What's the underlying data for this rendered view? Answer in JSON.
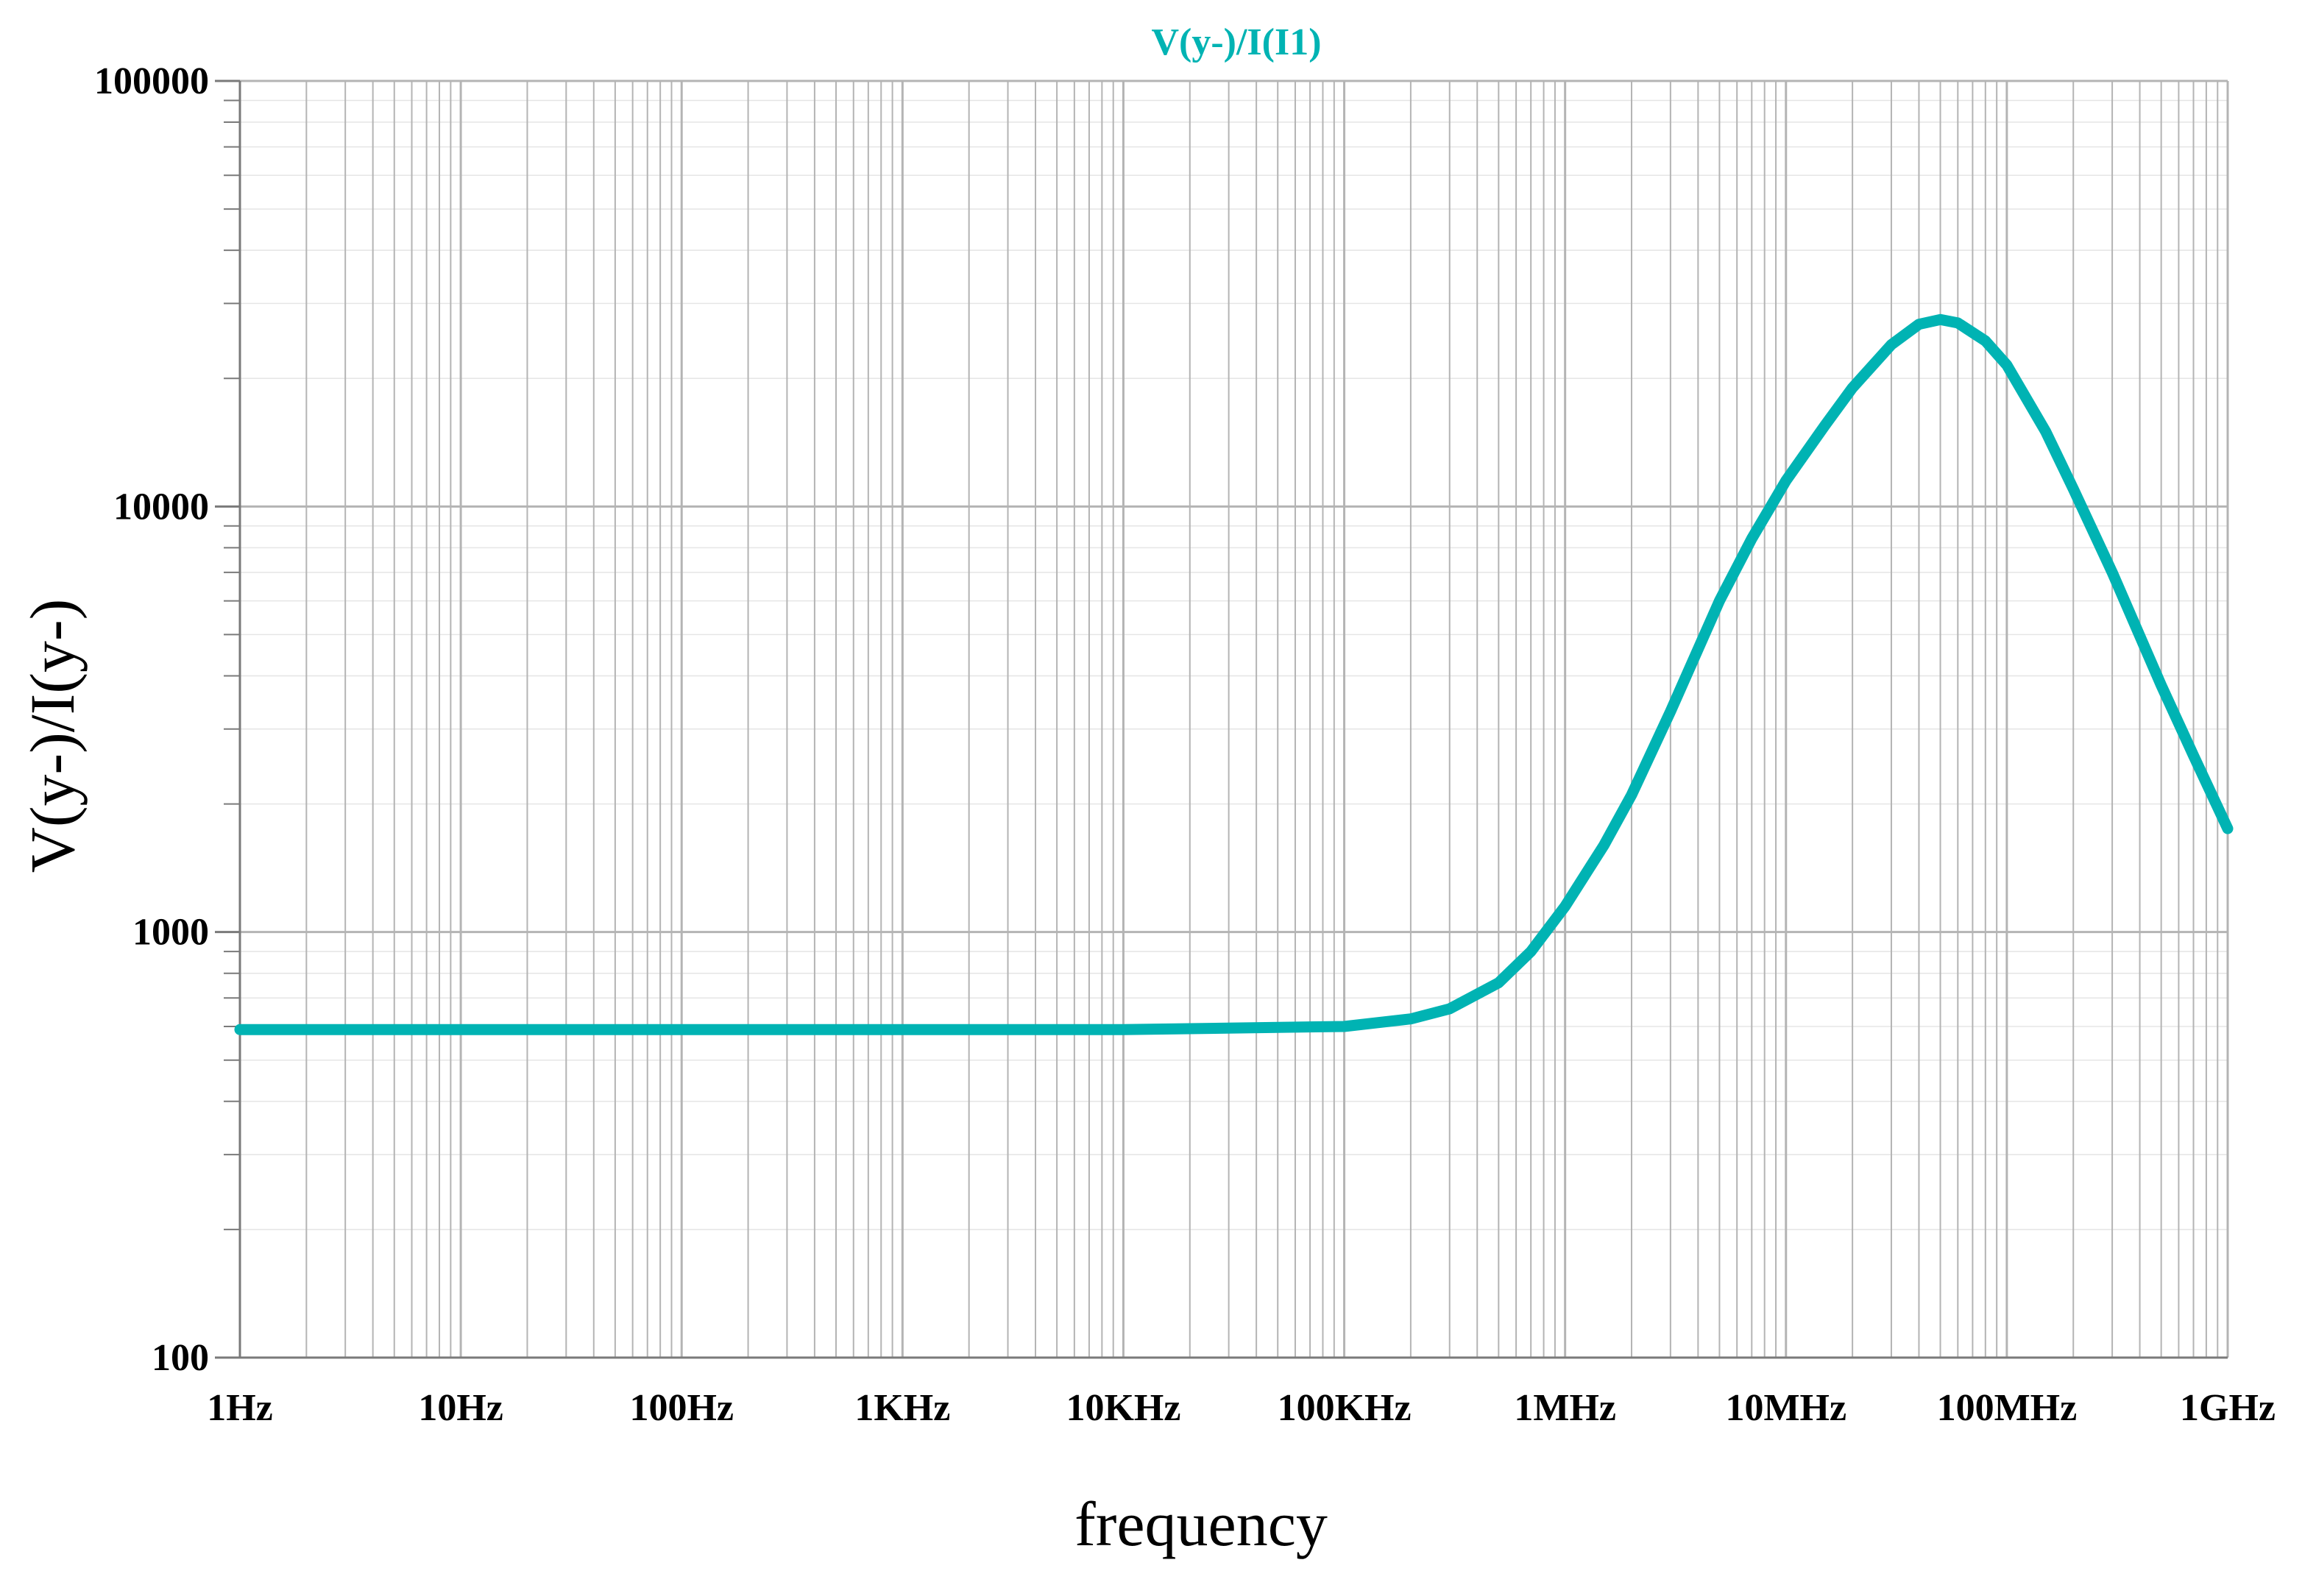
{
  "colors": {
    "series": "#00b3b3",
    "grid": "#b4b4b4",
    "axis": "#7a7a7a",
    "background": "#ffffff"
  },
  "chart_data": {
    "type": "line",
    "title": "V(y-)/I(I1)",
    "xlabel": "frequency",
    "ylabel": "V(y-)/I(y-)",
    "xscale": "log",
    "yscale": "log",
    "xlim": [
      1,
      1000000000
    ],
    "ylim": [
      100,
      100000
    ],
    "grid": true,
    "x_ticks": [
      {
        "value": 1,
        "label": "1Hz"
      },
      {
        "value": 10,
        "label": "10Hz"
      },
      {
        "value": 100,
        "label": "100Hz"
      },
      {
        "value": 1000,
        "label": "1KHz"
      },
      {
        "value": 10000,
        "label": "10KHz"
      },
      {
        "value": 100000,
        "label": "100KHz"
      },
      {
        "value": 1000000,
        "label": "1MHz"
      },
      {
        "value": 10000000,
        "label": "10MHz"
      },
      {
        "value": 100000000,
        "label": "100MHz"
      },
      {
        "value": 1000000000,
        "label": "1GHz"
      }
    ],
    "y_ticks": [
      {
        "value": 100,
        "label": "100"
      },
      {
        "value": 1000,
        "label": "1000"
      },
      {
        "value": 10000,
        "label": "10000"
      },
      {
        "value": 100000,
        "label": "100000"
      }
    ],
    "series": [
      {
        "name": "V(y-)/I(I1)",
        "x": [
          1,
          10,
          100,
          1000,
          10000,
          100000,
          200000,
          300000,
          500000,
          700000,
          1000000,
          1500000,
          2000000,
          3000000,
          5000000,
          7000000,
          10000000,
          15000000,
          20000000,
          30000000,
          40000000,
          50000000,
          60000000,
          80000000,
          100000000,
          150000000,
          200000000,
          300000000,
          500000000,
          700000000,
          1000000000
        ],
        "y": [
          590,
          590,
          590,
          590,
          590,
          600,
          625,
          660,
          760,
          900,
          1150,
          1600,
          2100,
          3300,
          6000,
          8400,
          11500,
          15500,
          19000,
          24000,
          26800,
          27500,
          27000,
          24500,
          21500,
          15000,
          11000,
          7000,
          3800,
          2600,
          1750
        ]
      }
    ]
  }
}
